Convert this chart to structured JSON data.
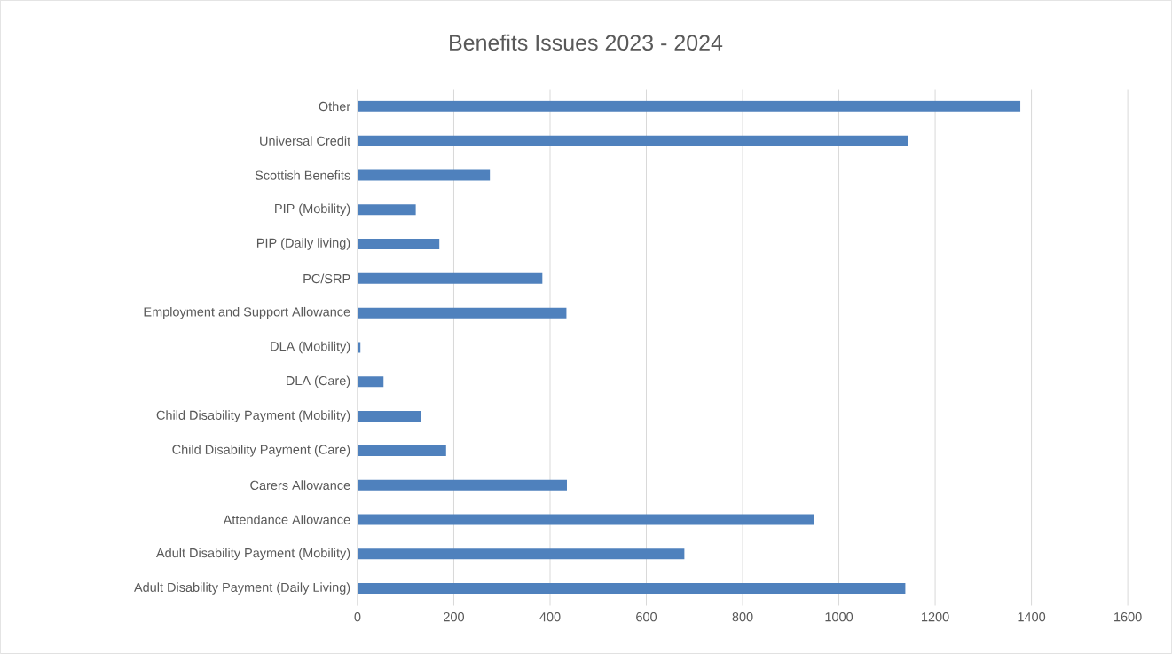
{
  "chart_data": {
    "type": "bar",
    "orientation": "horizontal",
    "title": "Benefits Issues 2023 - 2024",
    "categories": [
      "Other",
      "Universal Credit",
      "Scottish Benefits",
      "PIP (Mobility)",
      "PIP (Daily living)",
      "PC/SRP",
      "Employment and Support Allowance",
      "DLA (Mobility)",
      "DLA (Care)",
      "Child Disability Payment (Mobility)",
      "Child Disability Payment (Care)",
      "Carers Allowance",
      "Attendance Allowance",
      "Adult Disability Payment (Mobility)",
      "Adult Disability Payment (Daily Living)"
    ],
    "values": [
      1377,
      1144,
      275,
      121,
      170,
      384,
      434,
      6,
      54,
      132,
      184,
      435,
      948,
      679,
      1138
    ],
    "color": "#4f81bd",
    "xlim": [
      0,
      1600
    ],
    "xticks": [
      0,
      200,
      400,
      600,
      800,
      1000,
      1200,
      1400,
      1600
    ],
    "grid": "x"
  }
}
